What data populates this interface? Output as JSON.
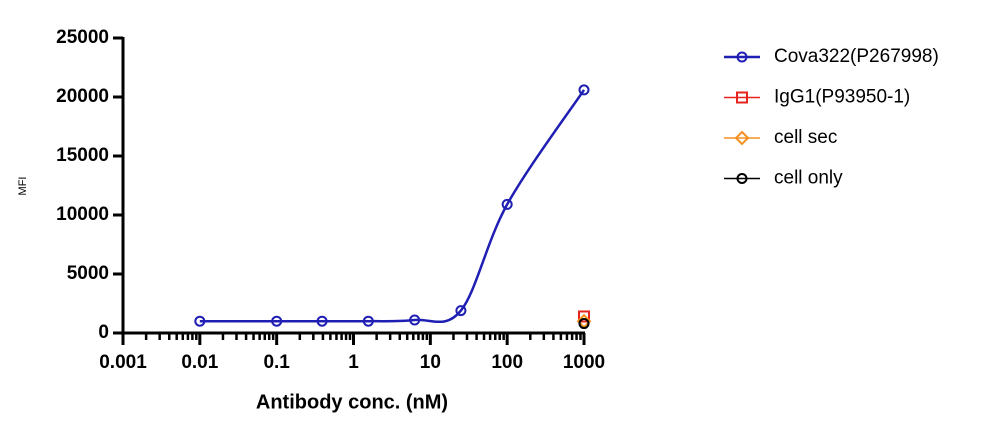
{
  "chart_data": {
    "type": "scatter",
    "x_label": "Antibody conc. (nM)",
    "y_label": "MFI",
    "x_scale": "log",
    "xlim": [
      0.001,
      1000
    ],
    "xticks": [
      0.001,
      0.01,
      0.1,
      1,
      10,
      100,
      1000
    ],
    "ylim": [
      0,
      25000
    ],
    "yticks": [
      0,
      5000,
      10000,
      15000,
      20000,
      25000
    ],
    "legend": "right",
    "series": [
      {
        "name": "Cova322(P267998)",
        "color": "#1f1fb4",
        "marker": "circle",
        "line": true,
        "x": [
          0.01,
          0.1,
          0.39,
          1.56,
          6.25,
          25,
          100,
          1000
        ],
        "values": [
          1000,
          1000,
          1000,
          1000,
          1100,
          1900,
          10900,
          20600
        ]
      },
      {
        "name": "IgG1(P93950-1)",
        "color": "#e8241f",
        "marker": "square",
        "line": false,
        "x": [
          1000
        ],
        "values": [
          1400
        ]
      },
      {
        "name": "cell sec",
        "color": "#f39020",
        "marker": "diamond",
        "line": false,
        "x": [
          1000
        ],
        "values": [
          1000
        ]
      },
      {
        "name": "cell only",
        "color": "#000000",
        "marker": "circle",
        "line": false,
        "x": [
          1000
        ],
        "values": [
          800
        ]
      }
    ]
  }
}
